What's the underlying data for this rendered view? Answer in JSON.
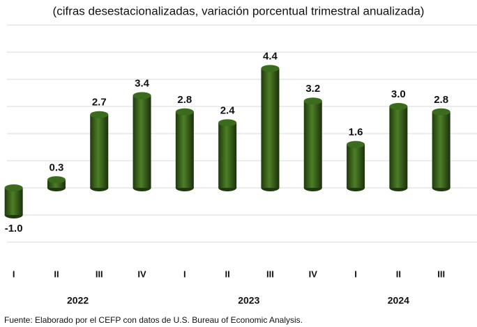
{
  "chart_data": {
    "type": "bar",
    "subtitle": "(cifras desestacionalizadas, variación porcentual trimestral anualizada)",
    "groups": [
      {
        "name": "2022",
        "categories": [
          "I",
          "II",
          "III",
          "IV"
        ]
      },
      {
        "name": "2023",
        "categories": [
          "I",
          "II",
          "III",
          "IV"
        ]
      },
      {
        "name": "2024",
        "categories": [
          "I",
          "II",
          "III"
        ]
      }
    ],
    "values": [
      -1.0,
      0.3,
      2.7,
      3.4,
      2.8,
      2.4,
      4.4,
      3.2,
      1.6,
      3.0,
      2.8
    ],
    "value_labels": [
      "-1.0",
      "0.3",
      "2.7",
      "3.4",
      "2.8",
      "2.4",
      "4.4",
      "3.2",
      "1.6",
      "3.0",
      "2.8"
    ],
    "color": "#3b6b1c",
    "ylim": [
      -2,
      6
    ],
    "yticks": [
      -2,
      -1,
      0,
      1,
      2,
      3,
      4,
      5,
      6
    ],
    "grid": true,
    "source": "Fuente: Elaborado por el CEFP con datos de U.S. Bureau of Economic Analysis."
  }
}
